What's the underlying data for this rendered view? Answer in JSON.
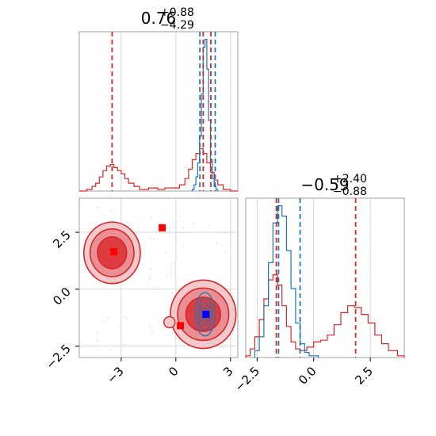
{
  "chart_data": [
    {
      "type": "histogram",
      "panel": "marginal-param-1",
      "title_main": "0.76",
      "title_sup": "+0.88",
      "title_sub": "−4.29",
      "xlim": [
        -5.3,
        3.4
      ],
      "grid": true,
      "series": [
        {
          "color": "#d62728",
          "bins": [
            [
              -5.3,
              -4.9,
              0.0
            ],
            [
              -4.9,
              -4.6,
              0.01
            ],
            [
              -4.6,
              -4.4,
              0.03
            ],
            [
              -4.4,
              -4.2,
              0.05
            ],
            [
              -4.2,
              -4.0,
              0.09
            ],
            [
              -4.0,
              -3.8,
              0.13
            ],
            [
              -3.8,
              -3.6,
              0.16
            ],
            [
              -3.6,
              -3.4,
              0.17
            ],
            [
              -3.4,
              -3.2,
              0.15
            ],
            [
              -3.2,
              -3.0,
              0.13
            ],
            [
              -3.0,
              -2.8,
              0.11
            ],
            [
              -2.8,
              -2.6,
              0.08
            ],
            [
              -2.6,
              -2.3,
              0.05
            ],
            [
              -2.3,
              -2.0,
              0.03
            ],
            [
              -2.0,
              -1.5,
              0.01
            ],
            [
              -1.5,
              -1.0,
              0.02
            ],
            [
              -1.0,
              -0.6,
              0.01
            ],
            [
              -0.6,
              -0.2,
              0.02
            ],
            [
              -0.2,
              0.2,
              0.02
            ],
            [
              0.2,
              0.5,
              0.04
            ],
            [
              0.5,
              0.7,
              0.08
            ],
            [
              0.7,
              0.9,
              0.14
            ],
            [
              0.9,
              1.1,
              0.2
            ],
            [
              1.1,
              1.3,
              0.24
            ],
            [
              1.3,
              1.5,
              0.27
            ],
            [
              1.5,
              1.7,
              0.24
            ],
            [
              1.7,
              1.9,
              0.18
            ],
            [
              1.9,
              2.1,
              0.12
            ],
            [
              2.1,
              2.3,
              0.07
            ],
            [
              2.3,
              2.6,
              0.04
            ],
            [
              2.6,
              3.0,
              0.01
            ],
            [
              3.0,
              3.4,
              0.0
            ]
          ]
        },
        {
          "color": "#1f77b4",
          "bins": [
            [
              0.9,
              1.0,
              0.01
            ],
            [
              1.0,
              1.1,
              0.04
            ],
            [
              1.1,
              1.2,
              0.09
            ],
            [
              1.2,
              1.3,
              0.18
            ],
            [
              1.3,
              1.4,
              0.35
            ],
            [
              1.4,
              1.5,
              0.62
            ],
            [
              1.5,
              1.6,
              0.92
            ],
            [
              1.6,
              1.7,
              0.97
            ],
            [
              1.7,
              1.8,
              0.78
            ],
            [
              1.8,
              1.9,
              0.45
            ],
            [
              1.9,
              2.0,
              0.2
            ],
            [
              2.0,
              2.1,
              0.08
            ],
            [
              2.1,
              2.2,
              0.03
            ],
            [
              2.2,
              2.3,
              0.01
            ]
          ]
        }
      ],
      "vlines": [
        {
          "x": -3.5,
          "color": "#d62728"
        },
        {
          "x": 1.5,
          "color": "#d62728"
        },
        {
          "x": 1.92,
          "color": "#d62728"
        },
        {
          "x": 1.32,
          "color": "#1f77b4"
        },
        {
          "x": 2.16,
          "color": "#1f77b4"
        }
      ]
    },
    {
      "type": "histogram",
      "panel": "marginal-param-2",
      "title_main": "−0.59",
      "title_sup": "+2.40",
      "title_sub": "−0.88",
      "xlim": [
        -3.0,
        4.0
      ],
      "xticks": [
        -2.5,
        0.0,
        2.5
      ],
      "xtick_labels": [
        "−2.5",
        "0.0",
        "2.5"
      ],
      "grid": true,
      "series": [
        {
          "color": "#d62728",
          "bins": [
            [
              -3.0,
              -2.8,
              0.01
            ],
            [
              -2.8,
              -2.6,
              0.05
            ],
            [
              -2.6,
              -2.4,
              0.12
            ],
            [
              -2.4,
              -2.2,
              0.22
            ],
            [
              -2.2,
              -2.0,
              0.34
            ],
            [
              -2.0,
              -1.8,
              0.45
            ],
            [
              -1.8,
              -1.6,
              0.48
            ],
            [
              -1.6,
              -1.4,
              0.42
            ],
            [
              -1.4,
              -1.2,
              0.3
            ],
            [
              -1.2,
              -1.0,
              0.18
            ],
            [
              -1.0,
              -0.8,
              0.09
            ],
            [
              -0.8,
              -0.6,
              0.05
            ],
            [
              -0.6,
              -0.3,
              0.04
            ],
            [
              -0.3,
              0.0,
              0.06
            ],
            [
              0.0,
              0.3,
              0.09
            ],
            [
              0.3,
              0.6,
              0.1
            ],
            [
              0.6,
              0.9,
              0.13
            ],
            [
              0.9,
              1.2,
              0.19
            ],
            [
              1.2,
              1.5,
              0.26
            ],
            [
              1.5,
              1.8,
              0.3
            ],
            [
              1.8,
              2.1,
              0.29
            ],
            [
              2.1,
              2.4,
              0.25
            ],
            [
              2.4,
              2.7,
              0.2
            ],
            [
              2.7,
              3.0,
              0.13
            ],
            [
              3.0,
              3.3,
              0.08
            ],
            [
              3.3,
              3.7,
              0.04
            ],
            [
              3.7,
              4.0,
              0.01
            ]
          ]
        },
        {
          "color": "#1f77b4",
          "bins": [
            [
              -2.6,
              -2.4,
              0.04
            ],
            [
              -2.4,
              -2.2,
              0.12
            ],
            [
              -2.2,
              -2.0,
              0.3
            ],
            [
              -2.0,
              -1.8,
              0.55
            ],
            [
              -1.8,
              -1.6,
              0.78
            ],
            [
              -1.6,
              -1.4,
              0.88
            ],
            [
              -1.4,
              -1.2,
              0.82
            ],
            [
              -1.2,
              -1.0,
              0.62
            ],
            [
              -1.0,
              -0.8,
              0.4
            ],
            [
              -0.8,
              -0.6,
              0.2
            ],
            [
              -0.6,
              -0.4,
              0.08
            ],
            [
              -0.4,
              -0.2,
              0.03
            ],
            [
              -0.2,
              0.2,
              0.01
            ]
          ]
        }
      ],
      "vlines": [
        {
          "x": -1.65,
          "color": "#d62728"
        },
        {
          "x": -1.55,
          "color": "#1f77b4"
        },
        {
          "x": -0.6,
          "color": "#1f77b4"
        },
        {
          "x": 1.85,
          "color": "#d62728"
        }
      ]
    },
    {
      "type": "contour",
      "panel": "joint-param-1-vs-param-2",
      "xlim": [
        -5.3,
        3.4
      ],
      "ylim": [
        -3.0,
        4.0
      ],
      "xticks": [
        -3,
        0,
        3
      ],
      "xtick_labels": [
        "−3",
        "0",
        "3"
      ],
      "yticks": [
        -2.5,
        0.0,
        2.5
      ],
      "ytick_labels": [
        "−2.5",
        "0.0",
        "2.5"
      ],
      "grid": true,
      "reference_lines": {
        "x": [
          -3.0,
          0.0,
          3.0
        ],
        "y": [
          -2.5,
          0.0,
          2.5
        ]
      },
      "red_blobs": [
        {
          "cx": -3.5,
          "cy": 1.6,
          "rx": [
            1.55,
            1.2,
            0.8
          ],
          "ry": [
            1.35,
            1.05,
            0.7
          ]
        },
        {
          "cx": 1.5,
          "cy": -1.1,
          "rx": [
            1.8,
            1.4,
            0.95
          ],
          "ry": [
            1.5,
            1.15,
            0.75
          ]
        }
      ],
      "blue_contours": {
        "cx": 1.6,
        "cy": -1.1,
        "rx": [
          0.55,
          0.4,
          0.28,
          0.16
        ],
        "ry": [
          0.95,
          0.7,
          0.48,
          0.28
        ]
      },
      "markers": [
        {
          "x": -0.75,
          "y": 2.7,
          "color": "#ff0000"
        },
        {
          "x": -3.4,
          "y": 1.65,
          "color": "#ff0000"
        },
        {
          "x": 0.25,
          "y": -1.6,
          "color": "#ff0000"
        },
        {
          "x": 1.65,
          "y": -1.1,
          "color": "#0000ff"
        }
      ]
    }
  ]
}
